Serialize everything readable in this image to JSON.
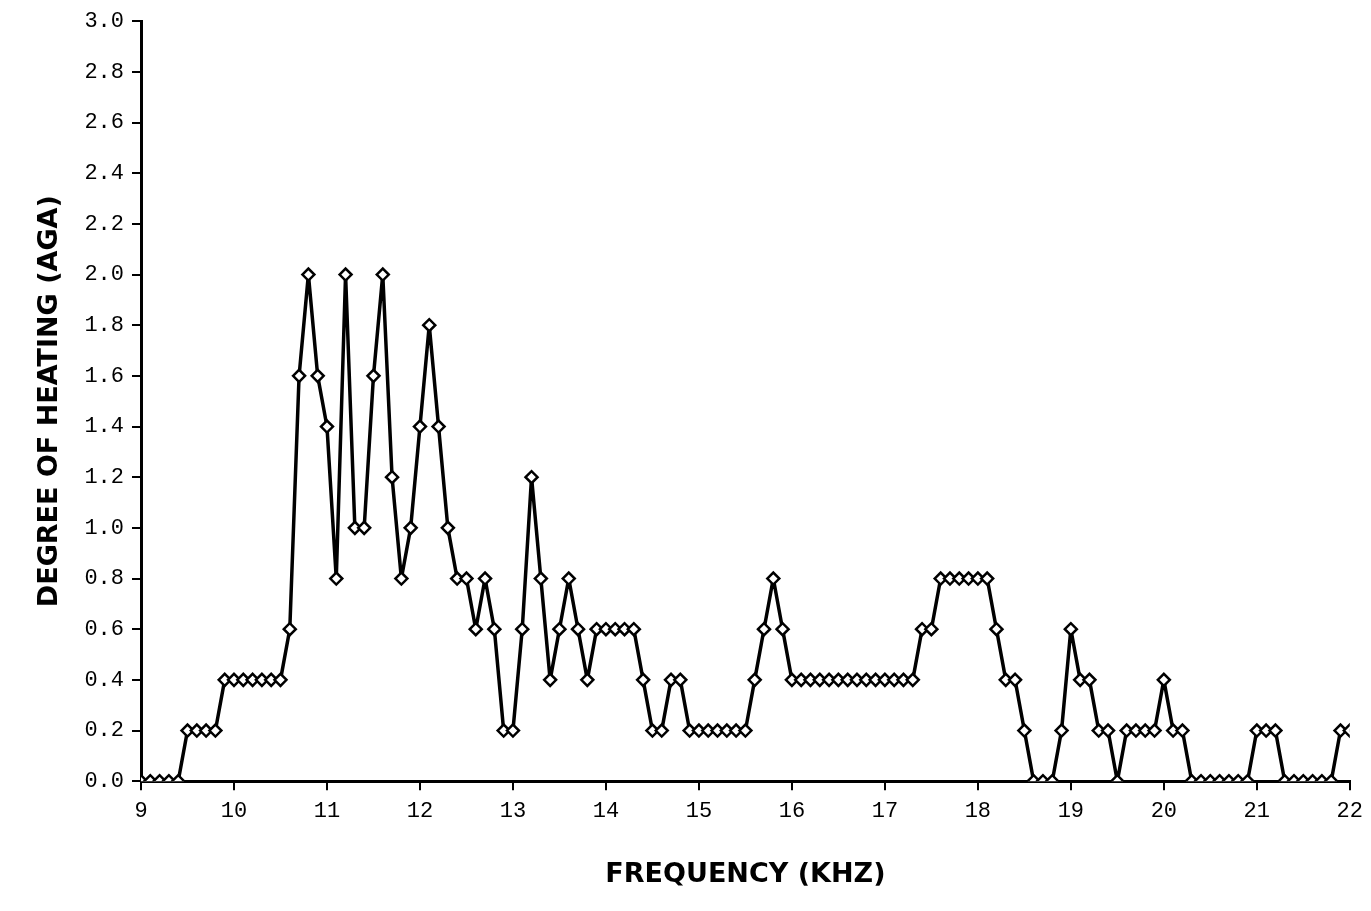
{
  "chart_data": {
    "type": "line",
    "xlabel": "FREQUENCY (KHZ)",
    "ylabel": "DEGREE OF HEATING (AGA)",
    "xlim": [
      9,
      22
    ],
    "xticks": [
      9,
      10,
      11,
      12,
      13,
      14,
      15,
      16,
      17,
      18,
      19,
      20,
      21,
      22
    ],
    "ylim": [
      0,
      3
    ],
    "yticks": [
      {
        "value": 0,
        "label": "0.0"
      },
      {
        "value": 0.2,
        "label": "0.2"
      },
      {
        "value": 0.4,
        "label": "0.4"
      },
      {
        "value": 0.6,
        "label": "0.6"
      },
      {
        "value": 0.8,
        "label": "0.8"
      },
      {
        "value": 1,
        "label": "1.0"
      },
      {
        "value": 1.2,
        "label": "1.2"
      },
      {
        "value": 1.4,
        "label": "1.4"
      },
      {
        "value": 1.6,
        "label": "1.6"
      },
      {
        "value": 1.8,
        "label": "1.8"
      },
      {
        "value": 2,
        "label": "2.0"
      },
      {
        "value": 2.2,
        "label": "2.2"
      },
      {
        "value": 2.4,
        "label": "2.4"
      },
      {
        "value": 2.6,
        "label": "2.6"
      },
      {
        "value": 2.8,
        "label": "2.8"
      },
      {
        "value": 3,
        "label": "3.0"
      }
    ],
    "grid": false,
    "legend": false,
    "marker": "diamond",
    "line_style": "solid",
    "series": [
      {
        "color": "#000000",
        "x": [
          9,
          9.1,
          9.2,
          9.3,
          9.4,
          9.5,
          9.6,
          9.7,
          9.8,
          9.9,
          10,
          10.1,
          10.2,
          10.3,
          10.4,
          10.5,
          10.6,
          10.7,
          10.8,
          10.9,
          11,
          11.1,
          11.2,
          11.3,
          11.4,
          11.5,
          11.6,
          11.7,
          11.8,
          11.9,
          12,
          12.1,
          12.2,
          12.3,
          12.4,
          12.5,
          12.6,
          12.7,
          12.8,
          12.9,
          13,
          13.1,
          13.2,
          13.3,
          13.4,
          13.5,
          13.6,
          13.7,
          13.8,
          13.9,
          14,
          14.1,
          14.2,
          14.3,
          14.4,
          14.5,
          14.6,
          14.7,
          14.8,
          14.9,
          15,
          15.1,
          15.2,
          15.3,
          15.4,
          15.5,
          15.6,
          15.7,
          15.8,
          15.9,
          16,
          16.1,
          16.2,
          16.3,
          16.4,
          16.5,
          16.6,
          16.7,
          16.8,
          16.9,
          17,
          17.1,
          17.2,
          17.3,
          17.4,
          17.5,
          17.6,
          17.7,
          17.8,
          17.9,
          18,
          18.1,
          18.2,
          18.3,
          18.4,
          18.5,
          18.6,
          18.7,
          18.8,
          18.9,
          19,
          19.1,
          19.2,
          19.3,
          19.4,
          19.5,
          19.6,
          19.7,
          19.8,
          19.9,
          20,
          20.1,
          20.2,
          20.3,
          20.4,
          20.5,
          20.6,
          20.7,
          20.8,
          20.9,
          21,
          21.1,
          21.2,
          21.3,
          21.4,
          21.5,
          21.6,
          21.7,
          21.8,
          21.9,
          22
        ],
        "values": [
          0,
          0,
          0,
          0,
          0,
          0.2,
          0.2,
          0.2,
          0.2,
          0.4,
          0.4,
          0.4,
          0.4,
          0.4,
          0.4,
          0.4,
          0.6,
          1.6,
          2,
          1.6,
          1.4,
          0.8,
          2,
          1,
          1,
          1.6,
          2,
          1.2,
          0.8,
          1,
          1.4,
          1.8,
          1.4,
          1,
          0.8,
          0.8,
          0.6,
          0.8,
          0.6,
          0.2,
          0.2,
          0.6,
          1.2,
          0.8,
          0.4,
          0.6,
          0.8,
          0.6,
          0.4,
          0.6,
          0.6,
          0.6,
          0.6,
          0.6,
          0.4,
          0.2,
          0.2,
          0.4,
          0.4,
          0.2,
          0.2,
          0.2,
          0.2,
          0.2,
          0.2,
          0.2,
          0.4,
          0.6,
          0.8,
          0.6,
          0.4,
          0.4,
          0.4,
          0.4,
          0.4,
          0.4,
          0.4,
          0.4,
          0.4,
          0.4,
          0.4,
          0.4,
          0.4,
          0.4,
          0.6,
          0.6,
          0.8,
          0.8,
          0.8,
          0.8,
          0.8,
          0.8,
          0.6,
          0.4,
          0.4,
          0.2,
          0,
          0,
          0,
          0.2,
          0.6,
          0.4,
          0.4,
          0.2,
          0.2,
          0,
          0.2,
          0.2,
          0.2,
          0.2,
          0.4,
          0.2,
          0.2,
          0,
          0,
          0,
          0,
          0,
          0,
          0,
          0.2,
          0.2,
          0.2,
          0,
          0,
          0,
          0,
          0,
          0,
          0.2,
          0.2
        ]
      }
    ]
  }
}
